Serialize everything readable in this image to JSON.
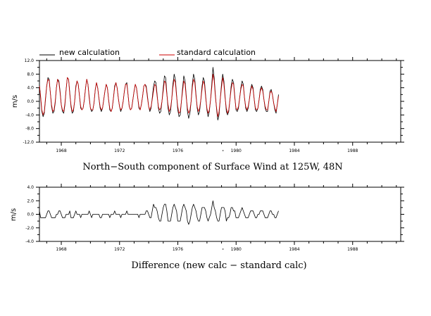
{
  "chart_data": [
    {
      "type": "line",
      "title": "North−South component of Surface Wind at 125W, 48N",
      "ylabel": "m/s",
      "xlim": [
        1966.5,
        1991.3
      ],
      "ylim": [
        -12.0,
        12.0
      ],
      "yticks": [
        "12.0",
        "8.0",
        "4.0",
        "0.0",
        "-4.0",
        "-8.0",
        "-12.0"
      ],
      "xticks": [
        "1968",
        "1972",
        "1976",
        "1980",
        "1984",
        "1988"
      ],
      "grid": false,
      "legend_position": "top-left",
      "series": [
        {
          "name": "new calculation",
          "color": "#000000",
          "x_start": 1966.5,
          "x_step": 0.0833,
          "values": [
            5.0,
            1.0,
            -3.0,
            -4.5,
            -3.5,
            0.5,
            4.5,
            7.0,
            6.5,
            2.5,
            -1.5,
            -3.5,
            -3.0,
            -0.5,
            4.0,
            6.5,
            6.0,
            3.0,
            -1.0,
            -3.0,
            -3.5,
            -1.0,
            3.5,
            7.0,
            6.5,
            2.5,
            -1.5,
            -3.5,
            -3.0,
            0.0,
            4.5,
            6.0,
            5.0,
            1.5,
            -2.0,
            -2.5,
            -2.0,
            0.5,
            4.0,
            6.5,
            5.0,
            1.5,
            -2.0,
            -3.0,
            -2.5,
            -0.5,
            3.5,
            5.5,
            4.0,
            1.0,
            -2.0,
            -3.0,
            -2.0,
            0.5,
            3.0,
            5.0,
            4.0,
            0.5,
            -2.5,
            -3.0,
            -2.0,
            1.0,
            4.5,
            5.5,
            4.0,
            1.0,
            -1.5,
            -3.0,
            -2.0,
            0.0,
            3.0,
            5.0,
            5.5,
            2.0,
            -1.5,
            -2.5,
            -2.0,
            0.5,
            3.0,
            5.0,
            4.0,
            1.0,
            -2.0,
            -2.5,
            -1.0,
            1.5,
            4.5,
            5.0,
            4.5,
            1.5,
            -1.5,
            -3.0,
            -2.0,
            1.0,
            4.5,
            6.0,
            5.5,
            2.0,
            -2.0,
            -3.5,
            -3.0,
            0.0,
            4.0,
            7.5,
            7.0,
            2.5,
            -2.0,
            -4.0,
            -3.0,
            0.5,
            5.0,
            8.0,
            6.5,
            2.0,
            -2.5,
            -4.5,
            -4.0,
            0.0,
            4.0,
            7.5,
            6.0,
            1.5,
            -3.0,
            -5.0,
            -3.5,
            0.0,
            5.0,
            8.0,
            6.5,
            2.0,
            -2.0,
            -4.0,
            -3.0,
            0.5,
            4.5,
            7.0,
            6.0,
            1.5,
            -2.5,
            -4.5,
            -3.0,
            0.5,
            5.0,
            10.0,
            7.0,
            2.0,
            -2.5,
            -5.5,
            -4.0,
            0.5,
            5.0,
            8.0,
            6.0,
            1.5,
            -3.0,
            -4.0,
            -3.0,
            0.5,
            4.5,
            6.5,
            5.5,
            1.5,
            -2.5,
            -3.0,
            -2.0,
            1.0,
            4.0,
            6.0,
            5.0,
            1.0,
            -2.0,
            -3.0,
            -2.0,
            0.5,
            3.5,
            5.0,
            4.0,
            0.5,
            -2.5,
            -3.0,
            -2.0,
            0.5,
            3.5,
            4.5,
            3.5,
            0.5,
            -2.0,
            -3.0,
            -3.0,
            0.0,
            3.0,
            3.5,
            2.0,
            -0.5,
            -2.5,
            -3.5,
            -1.0,
            2.0
          ]
        },
        {
          "name": "standard calculation",
          "color": "#cc0000",
          "x_start": 1966.5,
          "x_step": 0.0833,
          "values": [
            4.5,
            1.5,
            -2.5,
            -4.0,
            -3.0,
            1.0,
            4.5,
            6.5,
            6.0,
            2.5,
            -1.0,
            -3.0,
            -2.5,
            0.0,
            4.0,
            6.5,
            5.5,
            2.5,
            -1.0,
            -2.5,
            -3.0,
            -0.5,
            3.5,
            7.0,
            6.5,
            2.0,
            -1.0,
            -3.0,
            -2.5,
            0.0,
            4.0,
            6.0,
            5.0,
            1.5,
            -1.5,
            -2.5,
            -2.0,
            0.5,
            4.0,
            6.5,
            5.0,
            1.0,
            -2.0,
            -2.5,
            -2.5,
            -0.5,
            3.5,
            5.5,
            4.0,
            1.0,
            -1.5,
            -2.5,
            -2.0,
            0.5,
            3.0,
            5.0,
            4.0,
            0.5,
            -2.0,
            -3.0,
            -2.0,
            1.0,
            4.0,
            5.5,
            4.0,
            1.0,
            -1.5,
            -2.5,
            -2.0,
            0.0,
            3.0,
            5.0,
            5.0,
            2.0,
            -1.5,
            -2.5,
            -2.0,
            0.5,
            3.0,
            5.0,
            4.0,
            1.0,
            -1.5,
            -2.5,
            -1.0,
            1.5,
            4.5,
            5.0,
            4.0,
            1.0,
            -1.5,
            -2.5,
            -1.5,
            0.5,
            3.0,
            5.0,
            4.5,
            1.5,
            -1.5,
            -2.5,
            -2.0,
            0.0,
            3.0,
            6.0,
            5.5,
            2.0,
            -1.0,
            -3.0,
            -2.0,
            0.5,
            4.0,
            6.5,
            5.5,
            1.5,
            -1.5,
            -3.5,
            -3.0,
            0.0,
            3.0,
            6.0,
            5.0,
            1.0,
            -2.0,
            -3.5,
            -2.5,
            0.0,
            4.0,
            6.5,
            5.5,
            1.5,
            -1.5,
            -3.0,
            -2.0,
            0.5,
            3.5,
            6.0,
            5.0,
            1.0,
            -2.0,
            -3.5,
            -2.5,
            0.5,
            4.0,
            8.0,
            6.0,
            1.5,
            -2.0,
            -4.5,
            -3.0,
            0.5,
            4.0,
            7.0,
            5.0,
            1.0,
            -2.0,
            -3.5,
            -2.5,
            0.5,
            3.5,
            5.5,
            5.0,
            1.0,
            -2.0,
            -2.5,
            -1.5,
            1.0,
            3.5,
            5.0,
            4.5,
            1.0,
            -1.5,
            -2.5,
            -1.5,
            0.5,
            3.0,
            4.5,
            3.5,
            0.5,
            -2.0,
            -2.5,
            -2.0,
            0.5,
            3.0,
            4.0,
            3.0,
            0.5,
            -1.5,
            -2.5,
            -2.5,
            0.0,
            2.5,
            3.0,
            2.0,
            -0.5,
            -2.0,
            -3.0,
            -1.0,
            1.5
          ]
        }
      ]
    },
    {
      "type": "line",
      "title": "Difference (new calc − standard calc)",
      "ylabel": "m/s",
      "xlim": [
        1966.5,
        1991.3
      ],
      "ylim": [
        -4.0,
        4.0
      ],
      "yticks": [
        "4.0",
        "2.0",
        "0.0",
        "-2.0",
        "-4.0"
      ],
      "xticks": [
        "1968",
        "1972",
        "1976",
        "1980",
        "1984",
        "1988"
      ],
      "grid": false,
      "series": [
        {
          "color": "#000000",
          "x_start": 1966.5,
          "x_step": 0.0833,
          "values": [
            0.5,
            -0.5,
            -0.5,
            -0.5,
            -0.5,
            -0.5,
            0.0,
            0.5,
            0.5,
            0.0,
            -0.5,
            -0.5,
            -0.5,
            -0.5,
            0.0,
            0.0,
            0.5,
            0.5,
            0.0,
            -0.5,
            -0.5,
            -0.5,
            0.0,
            0.0,
            0.0,
            0.5,
            -0.5,
            -0.5,
            -0.5,
            0.0,
            0.5,
            0.0,
            0.0,
            0.0,
            -0.5,
            0.0,
            0.0,
            0.0,
            0.0,
            0.0,
            0.0,
            0.5,
            0.0,
            -0.5,
            0.0,
            0.0,
            0.0,
            0.0,
            0.0,
            0.0,
            -0.5,
            -0.5,
            0.0,
            0.0,
            0.0,
            0.0,
            0.0,
            0.0,
            -0.5,
            0.0,
            0.0,
            0.0,
            0.5,
            0.0,
            0.0,
            0.0,
            0.0,
            -0.5,
            0.0,
            0.0,
            0.0,
            0.0,
            0.5,
            0.0,
            0.0,
            0.0,
            0.0,
            0.0,
            0.0,
            0.0,
            0.0,
            0.0,
            -0.5,
            0.0,
            0.0,
            0.0,
            0.0,
            0.0,
            0.5,
            0.5,
            0.0,
            -0.5,
            -0.5,
            0.5,
            1.5,
            1.0,
            1.0,
            0.5,
            -0.5,
            -1.0,
            -1.0,
            0.0,
            1.0,
            1.5,
            1.5,
            0.5,
            -1.0,
            -1.0,
            -1.0,
            0.0,
            1.0,
            1.5,
            1.0,
            0.5,
            -1.0,
            -1.0,
            -1.0,
            0.0,
            1.0,
            1.5,
            1.0,
            0.5,
            -1.0,
            -1.5,
            -1.0,
            0.0,
            1.0,
            1.5,
            1.0,
            0.5,
            -0.5,
            -1.0,
            -1.0,
            0.0,
            1.0,
            1.0,
            1.0,
            0.5,
            -0.5,
            -1.0,
            -0.5,
            0.0,
            1.0,
            2.0,
            1.0,
            0.5,
            -0.5,
            -1.0,
            -1.0,
            0.0,
            1.0,
            1.0,
            1.0,
            0.5,
            -1.0,
            -0.5,
            -0.5,
            0.0,
            1.0,
            1.0,
            0.5,
            0.5,
            -0.5,
            -0.5,
            -0.5,
            0.0,
            0.5,
            1.0,
            0.5,
            0.0,
            -0.5,
            -0.5,
            -0.5,
            0.0,
            0.5,
            0.5,
            0.5,
            0.0,
            -0.5,
            -0.5,
            0.0,
            0.0,
            0.5,
            0.5,
            0.5,
            0.0,
            -0.5,
            -0.5,
            -0.5,
            0.0,
            0.5,
            0.5,
            0.0,
            0.0,
            -0.5,
            -0.5,
            0.0,
            0.5
          ]
        }
      ]
    }
  ]
}
